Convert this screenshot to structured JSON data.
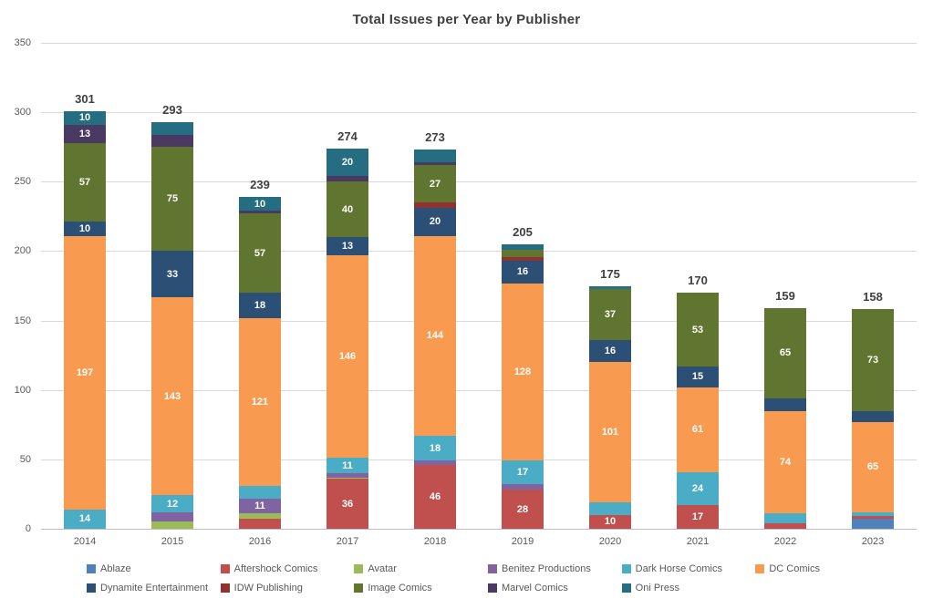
{
  "chart_data": {
    "type": "bar",
    "stacked": true,
    "title": "Total Issues per Year by Publisher",
    "xlabel": "",
    "ylabel": "",
    "categories": [
      "2014",
      "2015",
      "2016",
      "2017",
      "2018",
      "2019",
      "2020",
      "2021",
      "2022",
      "2023"
    ],
    "series": [
      {
        "name": "Ablaze",
        "color": "#4F81BD",
        "values": [
          0,
          0,
          0,
          0,
          0,
          0,
          0,
          0,
          0,
          7
        ]
      },
      {
        "name": "Aftershock Comics",
        "color": "#C0504D",
        "values": [
          0,
          0,
          7,
          36,
          46,
          28,
          10,
          17,
          4,
          2
        ]
      },
      {
        "name": "Avatar",
        "color": "#9BBB59",
        "values": [
          0,
          5,
          4,
          1,
          0,
          0,
          0,
          0,
          0,
          0
        ]
      },
      {
        "name": "Benitez Productions",
        "color": "#8064A2",
        "values": [
          0,
          7,
          11,
          3,
          3,
          4,
          0,
          0,
          0,
          0
        ]
      },
      {
        "name": "Dark Horse Comics",
        "color": "#4BACC6",
        "values": [
          14,
          12,
          9,
          11,
          18,
          17,
          9,
          24,
          7,
          3
        ]
      },
      {
        "name": "DC Comics",
        "color": "#F89B51",
        "values": [
          197,
          143,
          121,
          146,
          144,
          128,
          101,
          61,
          74,
          65
        ]
      },
      {
        "name": "Dynamite Entertainment",
        "color": "#2C4F76",
        "values": [
          10,
          33,
          18,
          13,
          20,
          16,
          16,
          15,
          9,
          8
        ]
      },
      {
        "name": "IDW Publishing",
        "color": "#8F3332",
        "values": [
          0,
          0,
          0,
          0,
          4,
          3,
          0,
          0,
          0,
          0
        ]
      },
      {
        "name": "Image Comics",
        "color": "#60752F",
        "values": [
          57,
          75,
          57,
          40,
          27,
          5,
          37,
          53,
          65,
          73
        ]
      },
      {
        "name": "Marvel Comics",
        "color": "#4A3A63",
        "values": [
          13,
          9,
          2,
          4,
          2,
          0,
          0,
          0,
          0,
          0
        ]
      },
      {
        "name": "Oni Press",
        "color": "#256D80",
        "values": [
          10,
          9,
          10,
          20,
          9,
          4,
          2,
          0,
          0,
          0
        ]
      }
    ],
    "totals": [
      301,
      293,
      239,
      274,
      273,
      205,
      175,
      170,
      159,
      158
    ],
    "y_ticks": [
      0,
      50,
      100,
      150,
      200,
      250,
      300,
      350
    ],
    "ylim": [
      0,
      350
    ],
    "grid": true,
    "data_label_threshold": 10,
    "legend_position": "bottom"
  },
  "style": {
    "gridline_color": "#d9d9d9",
    "axis_line_color": "#bfbfbf",
    "tick_label_color": "#595959",
    "title_color": "#404040",
    "total_label_color": "#404040",
    "segment_label_color": "#ffffff"
  }
}
